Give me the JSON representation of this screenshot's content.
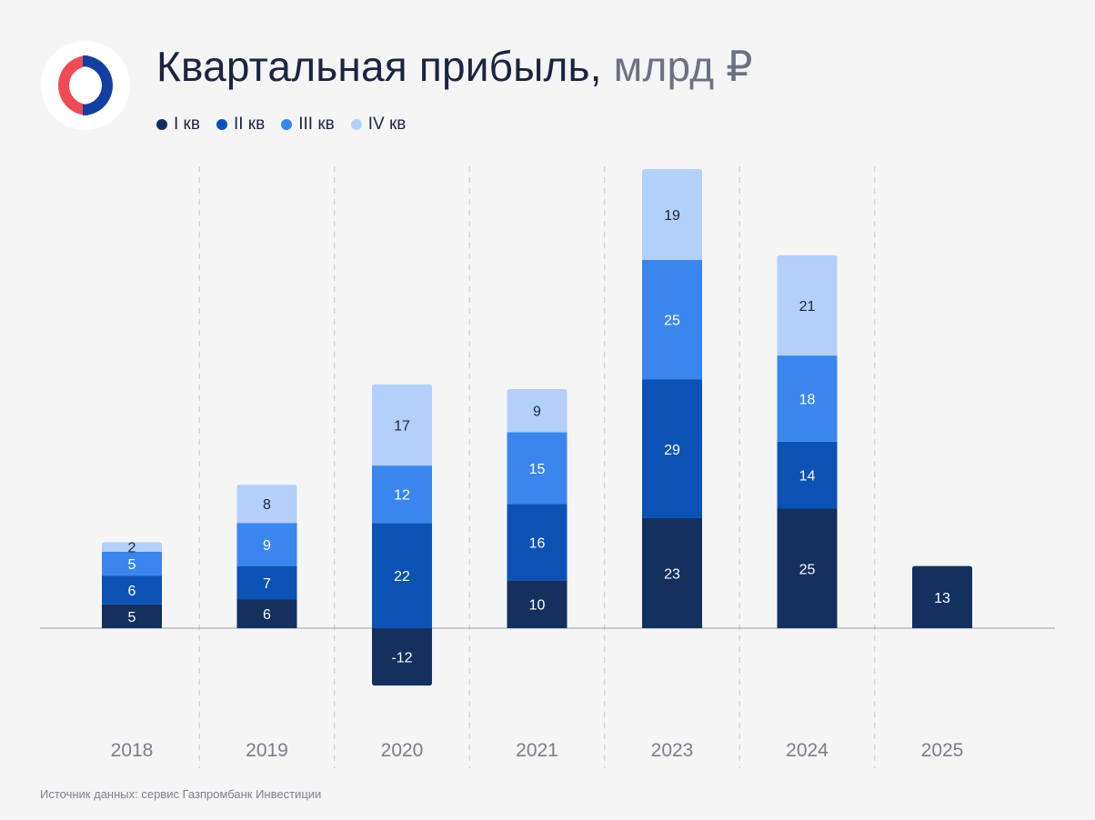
{
  "header": {
    "title": "Квартальная прибыль,",
    "unit": "млрд ₽"
  },
  "legend": [
    {
      "label": "I кв",
      "color": "#13305f"
    },
    {
      "label": "II кв",
      "color": "#0c52b5"
    },
    {
      "label": "III кв",
      "color": "#3a86ee"
    },
    {
      "label": "IV кв",
      "color": "#b3d0fb"
    }
  ],
  "footer": {
    "source": "Источник данных: сервис Газпромбанк Инвестиции"
  },
  "chart_data": {
    "type": "bar",
    "stacked": true,
    "title": "Квартальная прибыль, млрд ₽",
    "xlabel": "",
    "ylabel": "",
    "categories": [
      "2018",
      "2019",
      "2020",
      "2021",
      "2023",
      "2024",
      "2025"
    ],
    "series": [
      {
        "name": "I кв",
        "values": [
          5,
          6,
          -12,
          10,
          23,
          25,
          13
        ]
      },
      {
        "name": "II кв",
        "values": [
          6,
          7,
          22,
          16,
          29,
          14,
          null
        ]
      },
      {
        "name": "III кв",
        "values": [
          5,
          9,
          12,
          15,
          25,
          18,
          null
        ]
      },
      {
        "name": "IV кв",
        "values": [
          2,
          8,
          17,
          9,
          19,
          21,
          null
        ]
      }
    ],
    "ylim": [
      -12,
      96
    ],
    "grid": false,
    "legend_position": "top-left"
  }
}
